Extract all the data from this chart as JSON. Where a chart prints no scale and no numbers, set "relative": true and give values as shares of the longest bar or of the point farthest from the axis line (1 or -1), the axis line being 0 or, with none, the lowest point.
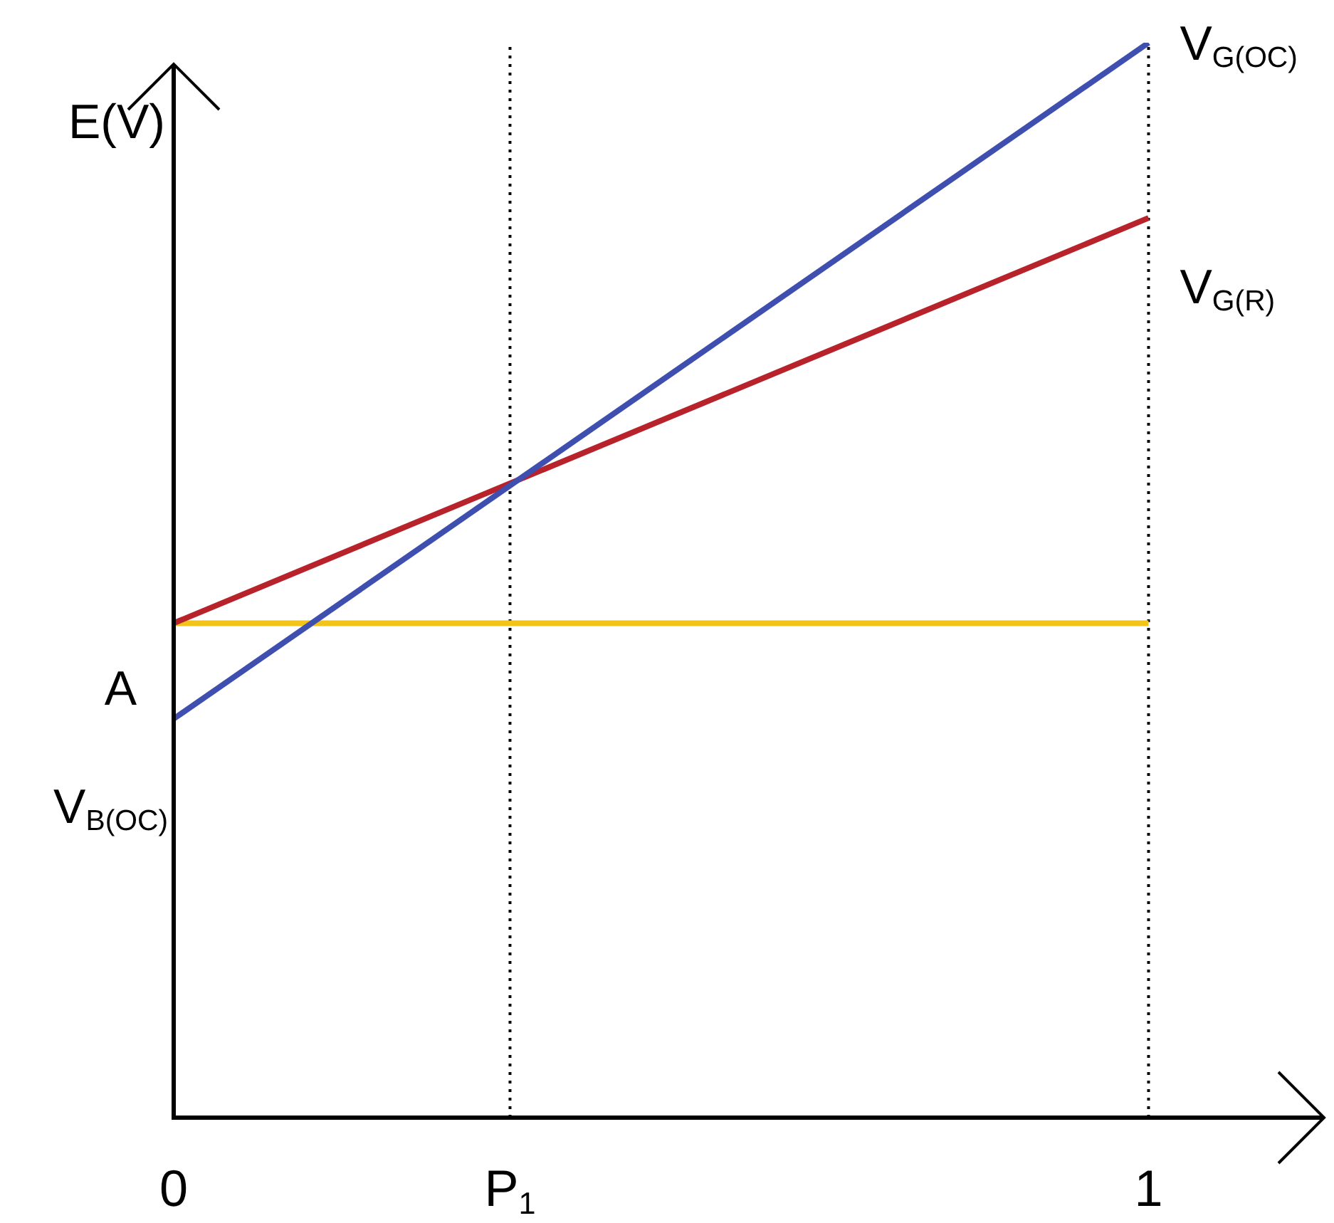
{
  "chart_data": {
    "type": "line",
    "relative": true,
    "ylabel": "E(V)",
    "x": [
      0,
      1
    ],
    "xlim": [
      0,
      1.18
    ],
    "xticks": [
      0,
      1
    ],
    "series": [
      {
        "name": "V$_{G(OC)}$",
        "color": "#3f4fb0",
        "values": [
          0.371,
          1
        ]
      },
      {
        "name": "V$_{G(R)}$",
        "color": "#b8222a",
        "values": [
          0.46,
          0.837
        ]
      },
      {
        "color": "#f2c318",
        "values": [
          0.46,
          0.46
        ]
      }
    ],
    "annotations": [
      "A",
      "V$_{B(OC)}$"
    ],
    "ref_lines": [
      {
        "axis": "x",
        "value": 0.345,
        "label": "P$_{1}$",
        "line_style": "dotted"
      },
      {
        "axis": "x",
        "value": 1,
        "line_style": "dotted"
      }
    ],
    "grid": false,
    "legend": false,
    "marker": "none",
    "line_style": "solid"
  }
}
